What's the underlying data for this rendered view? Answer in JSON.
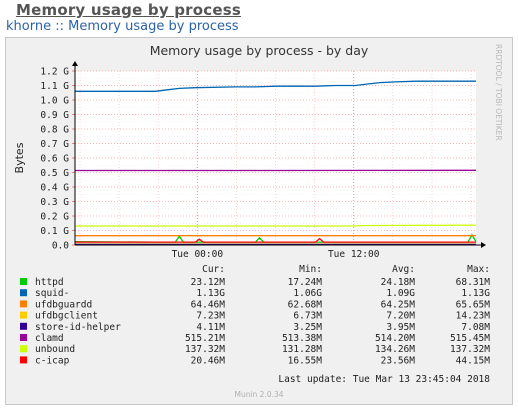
{
  "page": {
    "title": "Memory usage by process",
    "breadcrumb_host": "khorne",
    "breadcrumb_sep": "::",
    "breadcrumb_page": "Memory usage by process"
  },
  "chart_data": {
    "type": "line",
    "title": "Memory usage by process - by day",
    "ylabel": "Bytes",
    "xlabel": "",
    "ylim": [
      0,
      1.2
    ],
    "y_unit": "G",
    "y_ticks": [
      "0.0",
      "0.1 G",
      "0.2 G",
      "0.3 G",
      "0.4 G",
      "0.5 G",
      "0.6 G",
      "0.7 G",
      "0.8 G",
      "0.9 G",
      "1.0 G",
      "1.1 G",
      "1.2 G"
    ],
    "x_ticks": [
      {
        "label": "Tue 00:00",
        "pos": 0.305
      },
      {
        "label": "Tue 12:00",
        "pos": 0.695
      }
    ],
    "vertical_grid": true,
    "side_text": "RRDTOOL / TOBI OETIKER",
    "footer": "Munin 2.0.34",
    "last_update": "Last update:  Tue Mar 13 23:45:04 2018",
    "columns": [
      "Cur:",
      "Min:",
      "Avg:",
      "Max:"
    ],
    "series": [
      {
        "name": "httpd",
        "color": "#00cc00",
        "cur": "23.12M",
        "min": "17.24M",
        "avg": "24.18M",
        "max": "68.31M",
        "x": [
          0,
          0.2,
          0.25,
          0.26,
          0.27,
          0.45,
          0.46,
          0.47,
          0.7,
          0.98,
          0.99,
          1.0
        ],
        "values": [
          0.023,
          0.02,
          0.02,
          0.06,
          0.02,
          0.02,
          0.05,
          0.02,
          0.02,
          0.02,
          0.07,
          0.023
        ]
      },
      {
        "name": "squid-",
        "color": "#0066b3",
        "cur": "1.13G",
        "min": "1.06G",
        "avg": "1.09G",
        "max": "1.13G",
        "x": [
          0,
          0.1,
          0.2,
          0.23,
          0.26,
          0.3,
          0.4,
          0.45,
          0.5,
          0.55,
          0.6,
          0.65,
          0.7,
          0.73,
          0.76,
          0.8,
          0.85,
          0.9,
          0.95,
          1.0
        ],
        "values": [
          1.06,
          1.06,
          1.06,
          1.07,
          1.08,
          1.085,
          1.09,
          1.09,
          1.095,
          1.095,
          1.095,
          1.1,
          1.1,
          1.11,
          1.12,
          1.125,
          1.13,
          1.13,
          1.13,
          1.13
        ]
      },
      {
        "name": "ufdbguardd",
        "color": "#ff8000",
        "cur": "64.46M",
        "min": "62.68M",
        "avg": "64.25M",
        "max": "65.65M",
        "x": [
          0,
          0.5,
          1.0
        ],
        "values": [
          0.064,
          0.064,
          0.064
        ]
      },
      {
        "name": "ufdbgclient",
        "color": "#ffcc00",
        "cur": "7.23M",
        "min": "6.73M",
        "avg": "7.20M",
        "max": "14.23M",
        "x": [
          0,
          0.5,
          1.0
        ],
        "values": [
          0.007,
          0.007,
          0.007
        ]
      },
      {
        "name": "store-id-helper",
        "color": "#330099",
        "cur": "4.11M",
        "min": "3.25M",
        "avg": "3.95M",
        "max": "7.08M",
        "x": [
          0,
          0.5,
          1.0
        ],
        "values": [
          0.004,
          0.004,
          0.004
        ]
      },
      {
        "name": "clamd",
        "color": "#990099",
        "cur": "515.21M",
        "min": "513.38M",
        "avg": "514.20M",
        "max": "515.45M",
        "x": [
          0,
          0.5,
          1.0
        ],
        "values": [
          0.514,
          0.514,
          0.515
        ]
      },
      {
        "name": "unbound",
        "color": "#ccff00",
        "cur": "137.32M",
        "min": "131.28M",
        "avg": "134.26M",
        "max": "137.32M",
        "x": [
          0,
          0.7,
          0.71,
          1.0
        ],
        "values": [
          0.131,
          0.131,
          0.134,
          0.137
        ]
      },
      {
        "name": "c-icap",
        "color": "#ff0000",
        "cur": "20.46M",
        "min": "16.55M",
        "avg": "23.56M",
        "max": "44.15M",
        "x": [
          0,
          0.3,
          0.31,
          0.32,
          0.6,
          0.61,
          0.62,
          1.0
        ],
        "values": [
          0.02,
          0.02,
          0.04,
          0.02,
          0.02,
          0.044,
          0.02,
          0.02
        ]
      }
    ]
  }
}
